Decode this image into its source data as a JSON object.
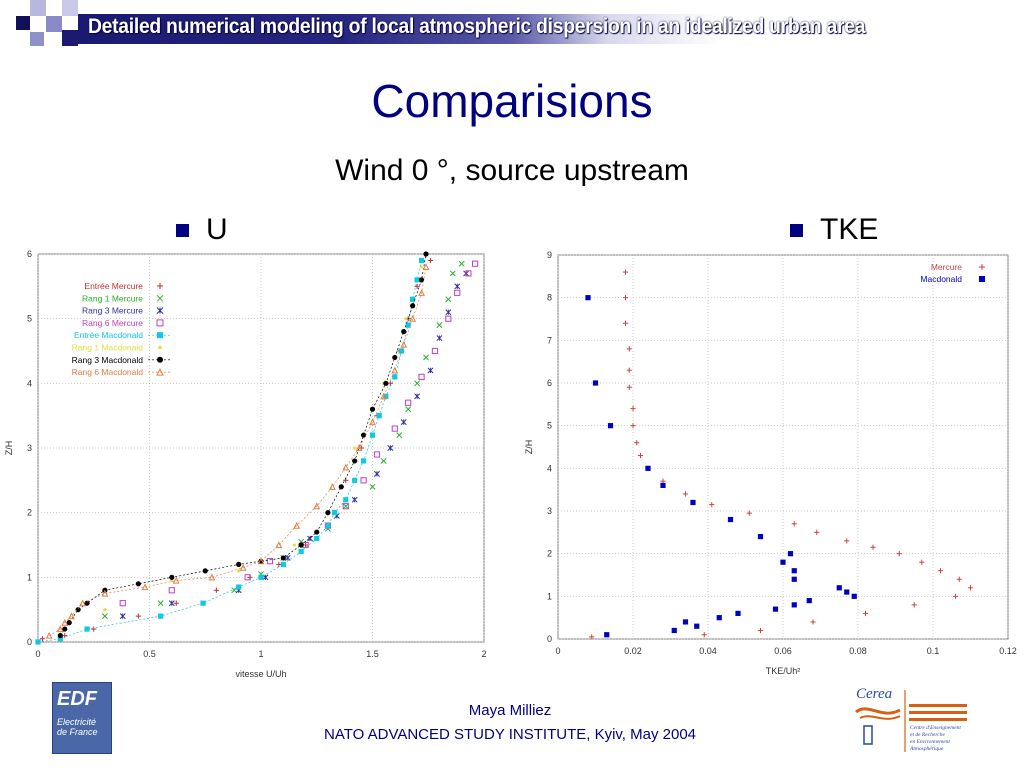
{
  "header": {
    "banner_title": "Detailed numerical modeling of local atmospheric dispersion in an idealized urban area"
  },
  "slide": {
    "title": "Comparisions",
    "subtitle": "Wind 0 °,  source upstream"
  },
  "panels": {
    "left_label": "U",
    "right_label": "TKE"
  },
  "footer": {
    "author": "Maya Milliez",
    "event": "NATO ADVANCED STUDY INSTITUTE, Kyiv, May 2004"
  },
  "logos": {
    "edf": {
      "name": "EDF",
      "line1": "Electricité",
      "line2": "de France"
    },
    "cerea": {
      "name": "Cerea",
      "line1": "Centre d'Enseignement",
      "line2": "et de Recherche",
      "line3": "en Environnement",
      "line4": "Atmosphérique"
    }
  },
  "colors": {
    "banner_blue": "#1a1a70",
    "title_blue": "#000080",
    "bullet": "#000080"
  },
  "chart_data": [
    {
      "type": "scatter",
      "title": "",
      "xlabel": "vitesse U/Uh",
      "ylabel": "Z/H",
      "xlim": [
        0,
        2
      ],
      "ylim": [
        0,
        6
      ],
      "xticks": [
        "0",
        "0.5",
        "1",
        "1.5",
        "2"
      ],
      "yticks": [
        "0",
        "1",
        "2",
        "3",
        "4",
        "5",
        "6"
      ],
      "grid": true,
      "legend_position": "top-left",
      "series": [
        {
          "name": "Entrée Mercure",
          "color": "#c03030",
          "marker": "plus",
          "points": [
            [
              0.02,
              0.05
            ],
            [
              0.12,
              0.1
            ],
            [
              0.25,
              0.2
            ],
            [
              0.45,
              0.4
            ],
            [
              0.62,
              0.6
            ],
            [
              0.8,
              0.8
            ],
            [
              0.95,
              1.0
            ],
            [
              1.08,
              1.2
            ],
            [
              1.2,
              1.5
            ],
            [
              1.3,
              2.0
            ],
            [
              1.38,
              2.5
            ],
            [
              1.45,
              3.0
            ],
            [
              1.52,
              3.5
            ],
            [
              1.58,
              4.0
            ],
            [
              1.62,
              4.5
            ],
            [
              1.66,
              5.0
            ],
            [
              1.7,
              5.5
            ],
            [
              1.76,
              5.9
            ]
          ]
        },
        {
          "name": "Rang 1 Mercure",
          "color": "#28b028",
          "marker": "x",
          "points": [
            [
              0.3,
              0.4
            ],
            [
              0.55,
              0.6
            ],
            [
              0.88,
              0.8
            ],
            [
              1.0,
              1.05
            ],
            [
              1.1,
              1.3
            ],
            [
              1.18,
              1.55
            ],
            [
              1.3,
              1.75
            ],
            [
              1.38,
              2.1
            ],
            [
              1.5,
              2.4
            ],
            [
              1.55,
              2.8
            ],
            [
              1.62,
              3.2
            ],
            [
              1.66,
              3.6
            ],
            [
              1.7,
              4.0
            ],
            [
              1.74,
              4.4
            ],
            [
              1.8,
              4.9
            ],
            [
              1.84,
              5.3
            ],
            [
              1.86,
              5.7
            ],
            [
              1.9,
              5.85
            ]
          ]
        },
        {
          "name": "Rang 3 Mercure",
          "color": "#3030a0",
          "marker": "asterisk",
          "points": [
            [
              0.38,
              0.4
            ],
            [
              0.6,
              0.6
            ],
            [
              0.9,
              0.8
            ],
            [
              1.02,
              1.0
            ],
            [
              1.12,
              1.3
            ],
            [
              1.22,
              1.6
            ],
            [
              1.34,
              1.95
            ],
            [
              1.42,
              2.2
            ],
            [
              1.52,
              2.6
            ],
            [
              1.58,
              3.0
            ],
            [
              1.64,
              3.4
            ],
            [
              1.7,
              3.8
            ],
            [
              1.76,
              4.2
            ],
            [
              1.8,
              4.7
            ],
            [
              1.84,
              5.1
            ],
            [
              1.88,
              5.5
            ],
            [
              1.92,
              5.7
            ]
          ]
        },
        {
          "name": "Rang 6 Mercure",
          "color": "#c040c0",
          "marker": "square-open",
          "points": [
            [
              0.38,
              0.6
            ],
            [
              0.6,
              0.8
            ],
            [
              0.94,
              1.0
            ],
            [
              1.04,
              1.25
            ],
            [
              1.2,
              1.5
            ],
            [
              1.3,
              1.8
            ],
            [
              1.38,
              2.1
            ],
            [
              1.46,
              2.5
            ],
            [
              1.52,
              2.9
            ],
            [
              1.6,
              3.3
            ],
            [
              1.66,
              3.7
            ],
            [
              1.72,
              4.1
            ],
            [
              1.78,
              4.5
            ],
            [
              1.84,
              5.0
            ],
            [
              1.88,
              5.4
            ],
            [
              1.93,
              5.7
            ],
            [
              1.96,
              5.85
            ]
          ]
        },
        {
          "name": "Entrée Macdonald",
          "color": "#10c8e0",
          "marker": "square-filled",
          "points": [
            [
              0.0,
              0.0
            ],
            [
              0.1,
              0.05
            ],
            [
              0.22,
              0.2
            ],
            [
              0.55,
              0.4
            ],
            [
              0.74,
              0.6
            ],
            [
              0.9,
              0.85
            ],
            [
              1.0,
              1.0
            ],
            [
              1.1,
              1.2
            ],
            [
              1.18,
              1.4
            ],
            [
              1.25,
              1.6
            ],
            [
              1.3,
              1.8
            ],
            [
              1.33,
              2.0
            ],
            [
              1.38,
              2.2
            ],
            [
              1.42,
              2.5
            ],
            [
              1.46,
              2.8
            ],
            [
              1.5,
              3.2
            ],
            [
              1.53,
              3.5
            ],
            [
              1.56,
              3.8
            ],
            [
              1.6,
              4.1
            ],
            [
              1.63,
              4.5
            ],
            [
              1.66,
              4.9
            ],
            [
              1.68,
              5.3
            ],
            [
              1.7,
              5.6
            ],
            [
              1.72,
              5.9
            ]
          ]
        },
        {
          "name": "Rang 1 Macdonald",
          "color": "#e0e040",
          "marker": "dot",
          "points": [
            [
              0.1,
              0.1
            ],
            [
              0.3,
              0.5
            ],
            [
              0.6,
              0.95
            ],
            [
              0.9,
              1.1
            ],
            [
              1.15,
              1.5
            ],
            [
              1.3,
              2.0
            ],
            [
              1.42,
              3.0
            ],
            [
              1.55,
              4.0
            ],
            [
              1.65,
              5.0
            ],
            [
              1.72,
              5.8
            ]
          ]
        },
        {
          "name": "Rang 3 Macdonald",
          "color": "#000000",
          "marker": "circle-filled",
          "points": [
            [
              0.1,
              0.1
            ],
            [
              0.12,
              0.2
            ],
            [
              0.14,
              0.3
            ],
            [
              0.18,
              0.5
            ],
            [
              0.22,
              0.6
            ],
            [
              0.3,
              0.8
            ],
            [
              0.45,
              0.9
            ],
            [
              0.6,
              1.0
            ],
            [
              0.75,
              1.1
            ],
            [
              0.9,
              1.2
            ],
            [
              1.0,
              1.25
            ],
            [
              1.1,
              1.3
            ],
            [
              1.18,
              1.5
            ],
            [
              1.25,
              1.7
            ],
            [
              1.3,
              2.0
            ],
            [
              1.36,
              2.4
            ],
            [
              1.42,
              2.8
            ],
            [
              1.46,
              3.2
            ],
            [
              1.5,
              3.6
            ],
            [
              1.56,
              4.0
            ],
            [
              1.6,
              4.4
            ],
            [
              1.64,
              4.8
            ],
            [
              1.68,
              5.2
            ],
            [
              1.72,
              5.6
            ],
            [
              1.74,
              6.0
            ]
          ]
        },
        {
          "name": "Rang 6 Macdonald",
          "color": "#e08040",
          "marker": "triangle-open",
          "points": [
            [
              0.05,
              0.1
            ],
            [
              0.1,
              0.2
            ],
            [
              0.12,
              0.3
            ],
            [
              0.15,
              0.4
            ],
            [
              0.2,
              0.6
            ],
            [
              0.3,
              0.75
            ],
            [
              0.48,
              0.85
            ],
            [
              0.62,
              0.95
            ],
            [
              0.78,
              1.0
            ],
            [
              0.92,
              1.15
            ],
            [
              1.0,
              1.25
            ],
            [
              1.08,
              1.5
            ],
            [
              1.16,
              1.8
            ],
            [
              1.25,
              2.1
            ],
            [
              1.32,
              2.4
            ],
            [
              1.38,
              2.7
            ],
            [
              1.44,
              3.0
            ],
            [
              1.5,
              3.4
            ],
            [
              1.55,
              3.8
            ],
            [
              1.6,
              4.2
            ],
            [
              1.64,
              4.6
            ],
            [
              1.68,
              5.0
            ],
            [
              1.72,
              5.4
            ],
            [
              1.74,
              5.8
            ]
          ]
        }
      ]
    },
    {
      "type": "scatter",
      "title": "",
      "xlabel": "TKE/Uh²",
      "ylabel": "Z/H",
      "xlim": [
        0,
        0.12
      ],
      "ylim": [
        0,
        9
      ],
      "xticks": [
        "0",
        "0.02",
        "0.04",
        "0.06",
        "0.08",
        "0.1",
        "0.12"
      ],
      "yticks": [
        "0",
        "1",
        "2",
        "3",
        "4",
        "5",
        "6",
        "7",
        "8",
        "9"
      ],
      "grid": true,
      "legend_position": "top-right",
      "series": [
        {
          "name": "Mercure",
          "color": "#d04040",
          "marker": "plus",
          "points": [
            [
              0.018,
              8.6
            ],
            [
              0.018,
              8.0
            ],
            [
              0.018,
              7.4
            ],
            [
              0.019,
              6.8
            ],
            [
              0.019,
              6.3
            ],
            [
              0.019,
              5.9
            ],
            [
              0.02,
              5.4
            ],
            [
              0.02,
              5.0
            ],
            [
              0.021,
              4.6
            ],
            [
              0.022,
              4.3
            ],
            [
              0.028,
              3.7
            ],
            [
              0.034,
              3.4
            ],
            [
              0.041,
              3.15
            ],
            [
              0.051,
              2.95
            ],
            [
              0.063,
              2.7
            ],
            [
              0.069,
              2.5
            ],
            [
              0.077,
              2.3
            ],
            [
              0.084,
              2.15
            ],
            [
              0.091,
              2.0
            ],
            [
              0.097,
              1.8
            ],
            [
              0.102,
              1.6
            ],
            [
              0.107,
              1.4
            ],
            [
              0.11,
              1.2
            ],
            [
              0.106,
              1.0
            ],
            [
              0.095,
              0.8
            ],
            [
              0.082,
              0.6
            ],
            [
              0.068,
              0.4
            ],
            [
              0.054,
              0.2
            ],
            [
              0.039,
              0.1
            ],
            [
              0.009,
              0.05
            ]
          ]
        },
        {
          "name": "Macdonald",
          "color": "#0000c0",
          "marker": "square-filled",
          "points": [
            [
              0.008,
              8.0
            ],
            [
              0.01,
              6.0
            ],
            [
              0.014,
              5.0
            ],
            [
              0.024,
              4.0
            ],
            [
              0.028,
              3.6
            ],
            [
              0.036,
              3.2
            ],
            [
              0.046,
              2.8
            ],
            [
              0.054,
              2.4
            ],
            [
              0.062,
              2.0
            ],
            [
              0.06,
              1.8
            ],
            [
              0.063,
              1.6
            ],
            [
              0.063,
              1.4
            ],
            [
              0.075,
              1.2
            ],
            [
              0.077,
              1.1
            ],
            [
              0.079,
              1.0
            ],
            [
              0.067,
              0.9
            ],
            [
              0.063,
              0.8
            ],
            [
              0.058,
              0.7
            ],
            [
              0.048,
              0.6
            ],
            [
              0.043,
              0.5
            ],
            [
              0.037,
              0.3
            ],
            [
              0.034,
              0.4
            ],
            [
              0.031,
              0.2
            ],
            [
              0.013,
              0.1
            ]
          ]
        }
      ]
    }
  ]
}
